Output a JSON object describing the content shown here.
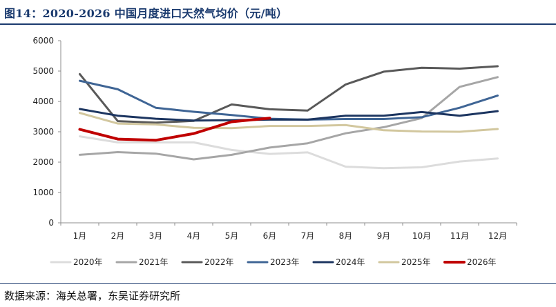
{
  "figure": {
    "title": "图14：2020-2026 中国月度进口天然气均价（元/吨）",
    "source": "数据来源：海关总署，东吴证券研究所"
  },
  "chart_data": {
    "type": "line",
    "title": "图14：2020-2026 中国月度进口天然气均价（元/吨）",
    "xlabel": "",
    "ylabel": "",
    "categories": [
      "1月",
      "2月",
      "3月",
      "4月",
      "5月",
      "6月",
      "7月",
      "8月",
      "9月",
      "10月",
      "11月",
      "12月"
    ],
    "ylim": [
      0,
      6000
    ],
    "yticks": [
      0,
      1000,
      2000,
      3000,
      4000,
      5000,
      6000
    ],
    "grid": false,
    "legend": "bottom",
    "series": [
      {
        "name": "2020年",
        "color": "#dcdcdc",
        "values": [
          2850,
          2650,
          2650,
          2650,
          2400,
          2270,
          2320,
          1850,
          1800,
          1830,
          2020,
          2120
        ]
      },
      {
        "name": "2021年",
        "color": "#a6a6a6",
        "values": [
          2240,
          2330,
          2280,
          2090,
          2240,
          2480,
          2620,
          2950,
          3150,
          3450,
          4480,
          4800
        ]
      },
      {
        "name": "2022年",
        "color": "#595959",
        "values": [
          4900,
          3350,
          3300,
          3360,
          3900,
          3740,
          3700,
          4560,
          4980,
          5110,
          5080,
          5160
        ]
      },
      {
        "name": "2023年",
        "color": "#3f6595",
        "values": [
          4680,
          4400,
          3790,
          3660,
          3550,
          3430,
          3400,
          3420,
          3420,
          3480,
          3790,
          4190
        ]
      },
      {
        "name": "2024年",
        "color": "#1c3560",
        "values": [
          3750,
          3530,
          3430,
          3370,
          3380,
          3400,
          3400,
          3530,
          3530,
          3650,
          3530,
          3680
        ]
      },
      {
        "name": "2025年",
        "color": "#d2c79e",
        "values": [
          3620,
          3270,
          3240,
          3130,
          3120,
          3190,
          3190,
          3220,
          3050,
          3010,
          3000,
          3090
        ]
      },
      {
        "name": "2026年",
        "color": "#c00000",
        "values": [
          3080,
          2760,
          2720,
          2940,
          3330,
          3450,
          null,
          null,
          null,
          null,
          null,
          null
        ]
      }
    ]
  }
}
